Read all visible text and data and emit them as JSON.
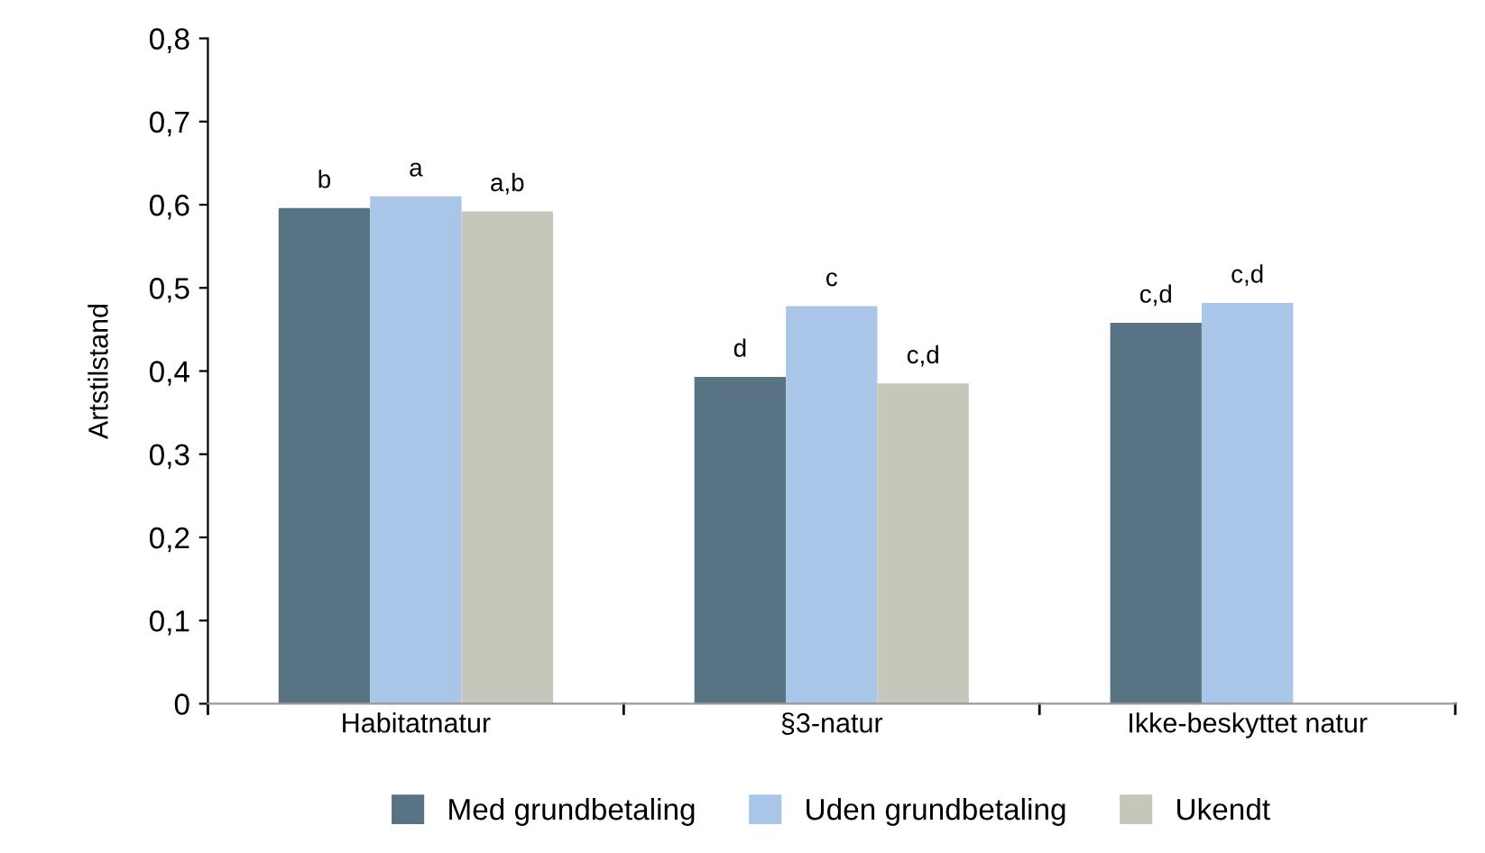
{
  "chart_data": {
    "type": "bar",
    "ylabel": "Artstilstand",
    "categories": [
      "Habitatnatur",
      "§3-natur",
      "Ikke-beskyttet natur"
    ],
    "series": [
      {
        "name": "Med grundbetaling",
        "color": "#587383",
        "values": [
          0.596,
          0.393,
          0.458
        ],
        "value_labels": [
          "b",
          "d",
          "c,d"
        ]
      },
      {
        "name": "Uden grundbetaling",
        "color": "#a9c6e8",
        "values": [
          0.61,
          0.478,
          0.482
        ],
        "value_labels": [
          "a",
          "c",
          "c,d"
        ]
      },
      {
        "name": "Ukendt",
        "color": "#c6c6ba",
        "values": [
          0.592,
          0.385,
          null
        ],
        "value_labels": [
          "a,b",
          "c,d",
          null
        ]
      }
    ],
    "ylim": [
      0,
      0.8
    ],
    "yticks": [
      0,
      {
        "value": 0.1,
        "label": "0,1"
      },
      {
        "value": 0.2,
        "label": "0,2"
      },
      {
        "value": 0.3,
        "label": "0,3"
      },
      {
        "value": 0.4,
        "label": "0,4"
      },
      {
        "value": 0.5,
        "label": "0,5"
      },
      {
        "value": 0.6,
        "label": "0,6"
      },
      {
        "value": 0.7,
        "label": "0,7"
      },
      {
        "value": 0.8,
        "label": "0,8"
      }
    ],
    "grid": false,
    "legend": "bottom"
  }
}
